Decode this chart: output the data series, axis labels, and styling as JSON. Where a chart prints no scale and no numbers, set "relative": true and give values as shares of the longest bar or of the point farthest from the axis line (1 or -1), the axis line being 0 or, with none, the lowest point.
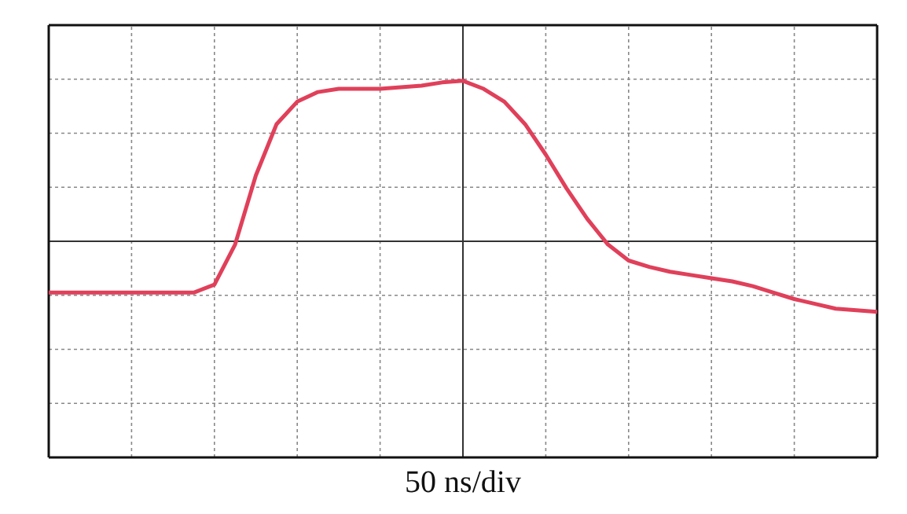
{
  "chart_data": {
    "type": "line",
    "relative": true,
    "xlabel": "50 ns/div",
    "grid": true,
    "tick_labels": false,
    "categories": [
      null,
      null,
      null,
      null,
      null,
      null,
      null,
      null,
      null,
      null,
      null,
      null,
      null,
      null,
      null,
      null,
      null,
      null,
      null,
      null,
      null,
      null,
      null,
      null,
      null,
      null,
      null,
      null,
      null,
      null,
      null,
      null,
      null,
      null,
      null,
      null,
      null,
      null,
      null,
      null,
      null
    ],
    "series": [
      {
        "color": "#e0405a",
        "values": [
          -0.32,
          -0.32,
          -0.32,
          -0.32,
          -0.32,
          -0.32,
          -0.32,
          -0.32,
          -0.27,
          -0.02,
          0.41,
          0.73,
          0.87,
          0.93,
          0.95,
          0.95,
          0.95,
          0.96,
          0.97,
          0.99,
          1,
          0.95,
          0.87,
          0.73,
          0.54,
          0.33,
          0.14,
          -0.02,
          -0.12,
          -0.16,
          -0.19,
          -0.21,
          -0.23,
          -0.25,
          -0.28,
          -0.32,
          -0.36,
          -0.39,
          -0.42,
          -0.43,
          -0.44
        ]
      }
    ]
  }
}
